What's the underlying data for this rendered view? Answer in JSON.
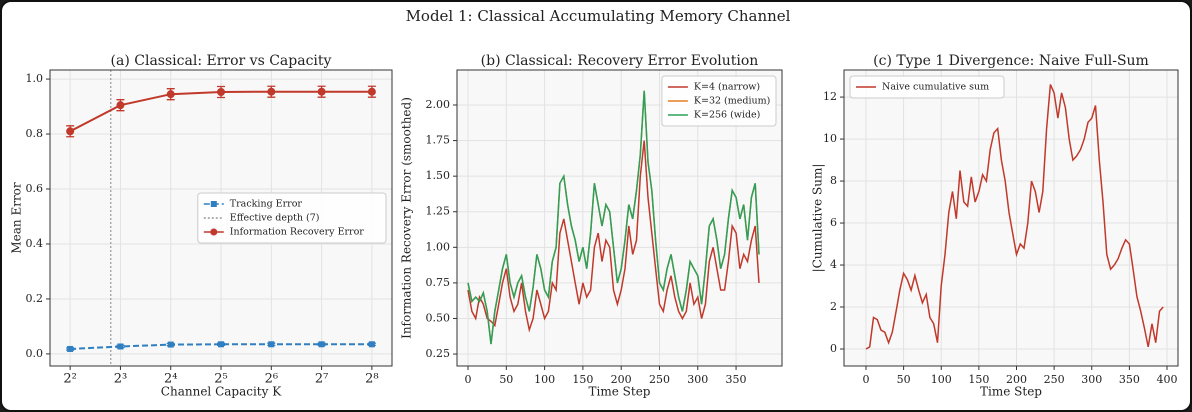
{
  "title": "Model 1: Classical Accumulating Memory Channel",
  "chart_data": [
    {
      "type": "line",
      "title": "(a) Classical: Error vs Capacity",
      "xlabel": "Channel Capacity K",
      "ylabel": "Mean Error",
      "x": [
        4,
        8,
        16,
        32,
        64,
        128,
        256
      ],
      "xscale": "log",
      "xlim": [
        3.03,
        337.8
      ],
      "xticks": [
        {
          "value": 4,
          "label": "2²"
        },
        {
          "value": 8,
          "label": "2³"
        },
        {
          "value": 16,
          "label": "2⁴"
        },
        {
          "value": 32,
          "label": "2⁵"
        },
        {
          "value": 64,
          "label": "2⁶"
        },
        {
          "value": 128,
          "label": "2⁷"
        },
        {
          "value": 256,
          "label": "2⁸"
        }
      ],
      "ylim": [
        -0.044,
        1.033
      ],
      "yticks": [
        {
          "value": 0,
          "label": "0.0"
        },
        0.2,
        0.4,
        0.6,
        0.8,
        {
          "value": 1,
          "label": "1.0"
        }
      ],
      "grid": true,
      "legend": "center right",
      "series": [
        {
          "name": "Tracking Error",
          "color": "#2f7fc1",
          "linestyle": "dashed",
          "marker": "square",
          "values": [
            0.018,
            0.027,
            0.034,
            0.035,
            0.035,
            0.035,
            0.035
          ],
          "errors": [
            0.004,
            0.004,
            0.004,
            0.004,
            0.004,
            0.004,
            0.004
          ]
        },
        {
          "name": "Information Recovery Error",
          "color": "#c0392b",
          "linestyle": "solid",
          "marker": "circle",
          "values": [
            0.81,
            0.905,
            0.945,
            0.953,
            0.954,
            0.954,
            0.954
          ],
          "errors": [
            0.02,
            0.02,
            0.02,
            0.02,
            0.02,
            0.02,
            0.02
          ]
        }
      ],
      "vlines": [
        {
          "name": "Effective depth (7)",
          "x": 7,
          "color": "#999999"
        }
      ]
    },
    {
      "type": "line",
      "title": "(b) Classical: Recovery Error Evolution",
      "xlabel": "Time Step",
      "ylabel": "Information Recovery Error (smoothed)",
      "x": [
        0,
        5,
        10,
        15,
        20,
        25,
        30,
        35,
        40,
        45,
        50,
        55,
        60,
        65,
        70,
        75,
        80,
        85,
        90,
        95,
        100,
        105,
        110,
        115,
        120,
        125,
        130,
        135,
        140,
        145,
        150,
        155,
        160,
        165,
        170,
        175,
        180,
        185,
        190,
        195,
        200,
        205,
        210,
        215,
        220,
        225,
        230,
        235,
        240,
        245,
        250,
        255,
        260,
        265,
        270,
        275,
        280,
        285,
        290,
        295,
        300,
        305,
        310,
        315,
        320,
        325,
        330,
        335,
        340,
        345,
        350,
        355,
        360,
        365,
        370,
        375,
        380
      ],
      "xlim": [
        -14.4,
        410
      ],
      "xticks": [
        0,
        50,
        100,
        150,
        200,
        250,
        300,
        350
      ],
      "ylim": [
        0.166,
        2.246
      ],
      "yticks": [
        {
          "value": 0.25,
          "label": "0.25"
        },
        {
          "value": 0.5,
          "label": "0.50"
        },
        {
          "value": 0.75,
          "label": "0.75"
        },
        {
          "value": 1,
          "label": "1.00"
        },
        {
          "value": 1.25,
          "label": "1.25"
        },
        {
          "value": 1.5,
          "label": "1.50"
        },
        {
          "value": 1.75,
          "label": "1.75"
        },
        {
          "value": 2,
          "label": "2.00"
        }
      ],
      "grid": true,
      "legend": "upper right",
      "series": [
        {
          "name": "K=4 (narrow)",
          "color": "#c0392b",
          "values": [
            0.7,
            0.55,
            0.5,
            0.65,
            0.6,
            0.5,
            0.48,
            0.45,
            0.6,
            0.75,
            0.85,
            0.65,
            0.55,
            0.6,
            0.75,
            0.55,
            0.42,
            0.5,
            0.7,
            0.6,
            0.5,
            0.55,
            0.75,
            0.7,
            1.1,
            1.2,
            1.05,
            0.9,
            0.75,
            0.6,
            0.75,
            0.65,
            0.7,
            1.0,
            1.1,
            0.9,
            1.05,
            1.0,
            0.7,
            0.6,
            0.7,
            0.85,
            1.15,
            0.95,
            1.05,
            1.5,
            1.75,
            1.35,
            1.1,
            0.85,
            0.6,
            0.55,
            0.7,
            0.8,
            0.65,
            0.55,
            0.5,
            0.55,
            0.75,
            0.6,
            0.65,
            0.5,
            0.6,
            0.9,
            1.0,
            0.85,
            0.7,
            0.7,
            0.9,
            1.15,
            1.1,
            0.85,
            0.95,
            0.9,
            1.05,
            1.15,
            0.75
          ]
        },
        {
          "name": "K=32 (medium)",
          "color": "#e67e22",
          "values": [
            0.75,
            0.62,
            0.65,
            0.62,
            0.68,
            0.55,
            0.32,
            0.55,
            0.7,
            0.85,
            0.95,
            0.75,
            0.65,
            0.75,
            0.8,
            0.65,
            0.55,
            0.72,
            0.95,
            0.85,
            0.7,
            0.65,
            0.9,
            1.0,
            1.45,
            1.5,
            1.3,
            1.15,
            1.05,
            0.9,
            1.0,
            0.85,
            1.1,
            1.45,
            1.3,
            1.15,
            1.3,
            1.25,
            1.0,
            0.75,
            0.85,
            1.05,
            1.3,
            1.2,
            1.4,
            1.65,
            2.1,
            1.6,
            1.4,
            1.05,
            0.75,
            0.7,
            0.85,
            0.95,
            0.8,
            0.65,
            0.55,
            0.7,
            0.9,
            0.85,
            0.8,
            0.6,
            0.85,
            1.15,
            1.2,
            1.05,
            0.85,
            0.95,
            1.2,
            1.4,
            1.35,
            1.2,
            1.3,
            1.05,
            1.35,
            1.45,
            0.95
          ]
        },
        {
          "name": "K=256 (wide)",
          "color": "#2ca05a",
          "values": [
            0.75,
            0.62,
            0.65,
            0.62,
            0.68,
            0.55,
            0.32,
            0.55,
            0.7,
            0.85,
            0.95,
            0.75,
            0.65,
            0.75,
            0.8,
            0.65,
            0.55,
            0.72,
            0.95,
            0.85,
            0.7,
            0.65,
            0.9,
            1.0,
            1.45,
            1.5,
            1.3,
            1.15,
            1.05,
            0.9,
            1.0,
            0.85,
            1.1,
            1.45,
            1.3,
            1.15,
            1.3,
            1.25,
            1.0,
            0.75,
            0.85,
            1.05,
            1.3,
            1.2,
            1.4,
            1.65,
            2.1,
            1.6,
            1.4,
            1.05,
            0.75,
            0.7,
            0.85,
            0.95,
            0.8,
            0.65,
            0.55,
            0.7,
            0.9,
            0.85,
            0.8,
            0.6,
            0.85,
            1.15,
            1.2,
            1.05,
            0.85,
            0.95,
            1.2,
            1.4,
            1.35,
            1.2,
            1.3,
            1.05,
            1.35,
            1.45,
            0.95
          ]
        }
      ]
    },
    {
      "type": "line",
      "title": "(c) Type 1 Divergence: Naive Full-Sum",
      "xlabel": "Time Step",
      "ylabel": "|Cumulative Sum|",
      "x": [
        0,
        5,
        10,
        15,
        20,
        25,
        30,
        35,
        40,
        45,
        50,
        55,
        60,
        65,
        70,
        75,
        80,
        85,
        90,
        95,
        100,
        105,
        110,
        115,
        120,
        125,
        130,
        135,
        140,
        145,
        150,
        155,
        160,
        165,
        170,
        175,
        180,
        185,
        190,
        195,
        200,
        205,
        210,
        215,
        220,
        225,
        230,
        235,
        240,
        245,
        250,
        255,
        260,
        265,
        270,
        275,
        280,
        285,
        290,
        295,
        300,
        305,
        310,
        315,
        320,
        325,
        330,
        335,
        340,
        345,
        350,
        355,
        360,
        365,
        370,
        375,
        380,
        385,
        390,
        395
      ],
      "xlim": [
        -29.2,
        414.6
      ],
      "xticks": [
        0,
        50,
        100,
        150,
        200,
        250,
        300,
        350,
        400
      ],
      "ylim": [
        -0.81,
        13.29
      ],
      "yticks": [
        0,
        2,
        4,
        6,
        8,
        10,
        12
      ],
      "grid": true,
      "legend": "upper left",
      "series": [
        {
          "name": "Naive cumulative sum",
          "color": "#c0392b",
          "values": [
            0,
            0.1,
            1.5,
            1.4,
            0.9,
            0.8,
            0.3,
            0.8,
            1.8,
            2.8,
            3.6,
            3.3,
            2.8,
            3.5,
            2.8,
            2.2,
            2.6,
            1.5,
            1.2,
            0.3,
            3.0,
            4.5,
            6.5,
            7.5,
            6.2,
            8.5,
            7.0,
            6.8,
            8.2,
            7.0,
            7.5,
            8.3,
            8.0,
            9.5,
            10.3,
            10.5,
            9.0,
            8.0,
            6.5,
            5.5,
            4.5,
            5.0,
            4.8,
            6.0,
            8.0,
            7.5,
            6.5,
            7.5,
            10.5,
            12.6,
            12.2,
            11.0,
            12.2,
            11.5,
            10.0,
            9.0,
            9.2,
            9.5,
            10.0,
            10.8,
            11.0,
            11.6,
            9.0,
            7.0,
            4.5,
            3.8,
            4.0,
            4.3,
            4.8,
            5.2,
            5.0,
            3.8,
            2.5,
            1.8,
            1.0,
            0.1,
            1.2,
            0.3,
            1.8,
            2.0
          ]
        }
      ]
    }
  ]
}
